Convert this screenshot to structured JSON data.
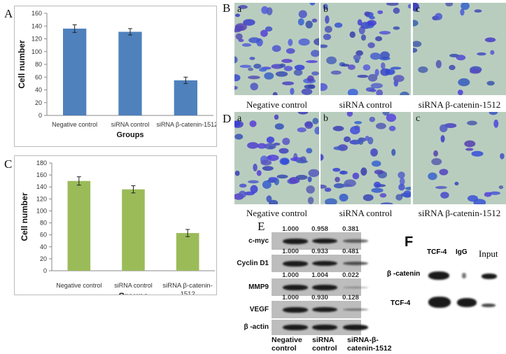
{
  "panels": {
    "A": "A",
    "B": "B",
    "C": "C",
    "D": "D",
    "E": "E",
    "F": "F"
  },
  "chart_data": [
    {
      "id": "A",
      "type": "bar",
      "categories": [
        "Negative control",
        "siRNA control",
        "siRNA β-catenin-1512"
      ],
      "values": [
        136,
        131,
        55
      ],
      "errors": [
        6,
        5,
        5
      ],
      "ylabel": "Cell number",
      "xlabel": "Groups",
      "ylim": [
        0,
        160
      ],
      "yticks": [
        0,
        20,
        40,
        60,
        80,
        100,
        120,
        140,
        160
      ],
      "color": "#4f81bd"
    },
    {
      "id": "C",
      "type": "bar",
      "categories": [
        "Negative control",
        "siRNA control",
        "siRNA β-catenin-1512"
      ],
      "values": [
        150,
        136,
        63
      ],
      "errors": [
        7,
        6,
        6
      ],
      "ylabel": "Cell number",
      "xlabel": "Groups",
      "ylim": [
        0,
        180
      ],
      "yticks": [
        0,
        20,
        40,
        60,
        80,
        100,
        120,
        140,
        160,
        180
      ],
      "color": "#9bbb59"
    }
  ],
  "micrographs": {
    "B": {
      "tags": [
        "a",
        "b",
        "c"
      ],
      "captions": [
        "Negative control",
        "siRNA control",
        "siRNA β-catenin-1512"
      ],
      "density": [
        1,
        0.95,
        0.45
      ]
    },
    "D": {
      "tags": [
        "a",
        "b",
        "c"
      ],
      "captions": [
        "Negative control",
        "siRNA control",
        "siRNA β-catenin-1512"
      ],
      "density": [
        1,
        0.9,
        0.4
      ]
    }
  },
  "western": {
    "rows": [
      {
        "label": "c-myc",
        "values": [
          "1.000",
          "0.958",
          "0.381"
        ],
        "intensity": [
          1,
          0.96,
          0.38
        ]
      },
      {
        "label": "Cyclin D1",
        "values": [
          "1.000",
          "0.933",
          "0.481"
        ],
        "intensity": [
          1,
          0.93,
          0.48
        ]
      },
      {
        "label": "MMP9",
        "values": [
          "1.000",
          "1.004",
          "0.022"
        ],
        "intensity": [
          1,
          1,
          0.05
        ]
      },
      {
        "label": "VEGF",
        "values": [
          "1.000",
          "0.930",
          "0.128"
        ],
        "intensity": [
          1,
          0.93,
          0.2
        ]
      },
      {
        "label": "β -actin",
        "values": null,
        "intensity": [
          1,
          1,
          1
        ]
      }
    ],
    "lanes": [
      "Negative control",
      "siRNA control",
      "siRNA-β-catenin-1512"
    ]
  },
  "coip": {
    "lanes": [
      "TCF-4",
      "IgG",
      "Input"
    ],
    "rows": [
      "β -catenin",
      "TCF-4"
    ]
  }
}
